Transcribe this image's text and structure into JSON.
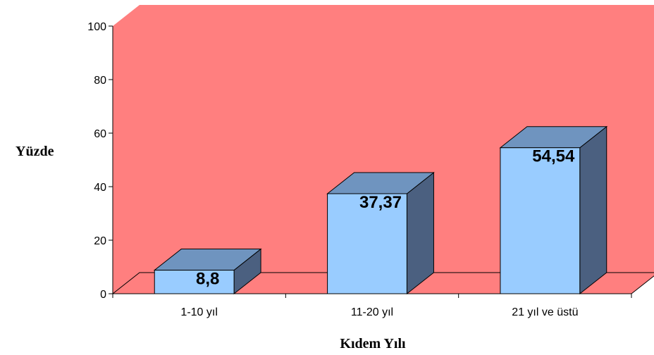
{
  "chart_data": {
    "type": "bar",
    "categories": [
      "1-10 yıl",
      "11-20 yıl",
      "21 yıl ve üstü"
    ],
    "values": [
      8.8,
      37.37,
      54.54
    ],
    "data_labels": [
      "8,8",
      "37,37",
      "54,54"
    ],
    "title": "",
    "xlabel": "Kıdem Yılı",
    "ylabel": "Yüzde",
    "ylim": [
      0,
      100
    ],
    "yticks": [
      0,
      20,
      40,
      60,
      80,
      100
    ],
    "grid": false,
    "legend": "none",
    "style": "3d",
    "colors": {
      "wall": "#ff7f7f",
      "floor": "#ff7f7f",
      "bar_front": "#99ccff",
      "bar_top": "#6f94bf",
      "bar_side": "#4b6080",
      "outline": "#000000"
    }
  }
}
